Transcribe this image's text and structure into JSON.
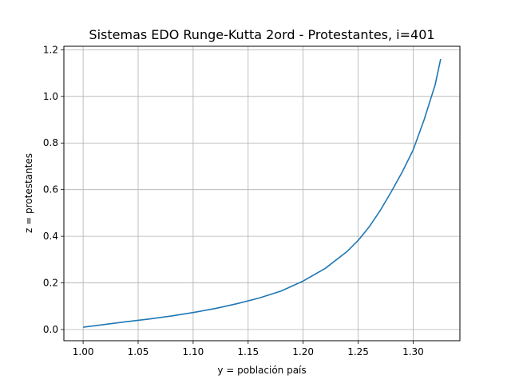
{
  "chart_data": {
    "type": "line",
    "title": "Sistemas EDO Runge-Kutta 2ord - Protestantes, i=401",
    "xlabel": "y = población país",
    "ylabel": "z = protestantes",
    "xlim": [
      0.9825,
      1.3425
    ],
    "ylim": [
      -0.048,
      1.215
    ],
    "x_ticks": [
      "1.00",
      "1.05",
      "1.10",
      "1.15",
      "1.20",
      "1.25",
      "1.30"
    ],
    "y_ticks": [
      "0.0",
      "0.2",
      "0.4",
      "0.6",
      "0.8",
      "1.0",
      "1.2"
    ],
    "grid": true,
    "line_color": "#1f77b4",
    "series": [
      {
        "x": [
          1.0,
          1.02,
          1.04,
          1.06,
          1.08,
          1.1,
          1.12,
          1.14,
          1.16,
          1.18,
          1.2,
          1.22,
          1.24,
          1.25,
          1.26,
          1.27,
          1.28,
          1.29,
          1.3,
          1.31,
          1.32,
          1.325
        ],
        "y": [
          0.01,
          0.022,
          0.034,
          0.045,
          0.058,
          0.073,
          0.09,
          0.111,
          0.135,
          0.165,
          0.208,
          0.262,
          0.335,
          0.382,
          0.44,
          0.51,
          0.59,
          0.675,
          0.77,
          0.9,
          1.05,
          1.16
        ]
      }
    ]
  }
}
